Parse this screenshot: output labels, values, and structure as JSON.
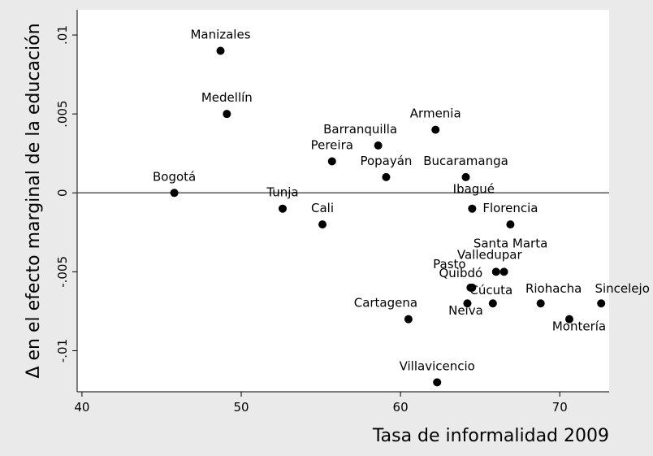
{
  "chart_data": {
    "type": "scatter",
    "x_label": "Tasa de informalidad 2009",
    "y_label": "Δ en el efecto marginal de la educación",
    "xlim": [
      39.7,
      73.1
    ],
    "ylim": [
      -0.0126,
      0.0116
    ],
    "xticks": [
      40,
      50,
      60,
      70
    ],
    "yticks": [
      {
        "value": -0.01,
        "label": "-.01"
      },
      {
        "value": -0.005,
        "label": "-.005"
      },
      0,
      {
        "value": 0.005,
        "label": ".005"
      },
      {
        "value": 0.01,
        "label": ".01"
      }
    ],
    "yline": 0,
    "color": "#000000",
    "labels": [
      "Manizales",
      "Medellín",
      "Armenia",
      "Barranquilla",
      "Pereira",
      "Popayán",
      "Bucaramanga",
      "Bogotá",
      "Tunja",
      "Ibagué",
      "Cali",
      "Florencia",
      "Santa Marta",
      "Valledupar",
      "Pasto",
      "Quibdó",
      "Neiva",
      "Cúcuta",
      "Cartagena",
      "Riohacha",
      "Montería",
      "Sincelejo",
      "Villavicencio"
    ],
    "x": [
      48.7,
      49.1,
      62.2,
      58.6,
      55.7,
      59.1,
      64.1,
      45.8,
      52.6,
      64.5,
      55.1,
      66.9,
      66.5,
      66.0,
      64.4,
      64.5,
      64.2,
      65.8,
      60.5,
      68.8,
      70.6,
      72.6,
      62.3
    ],
    "y": [
      0.009,
      0.005,
      0.004,
      0.003,
      0.002,
      0.001,
      0.001,
      0,
      -0.001,
      -0.001,
      -0.002,
      -0.002,
      -0.005,
      -0.005,
      -0.006,
      -0.006,
      -0.007,
      -0.007,
      -0.008,
      -0.007,
      -0.008,
      -0.007,
      -0.012
    ]
  }
}
